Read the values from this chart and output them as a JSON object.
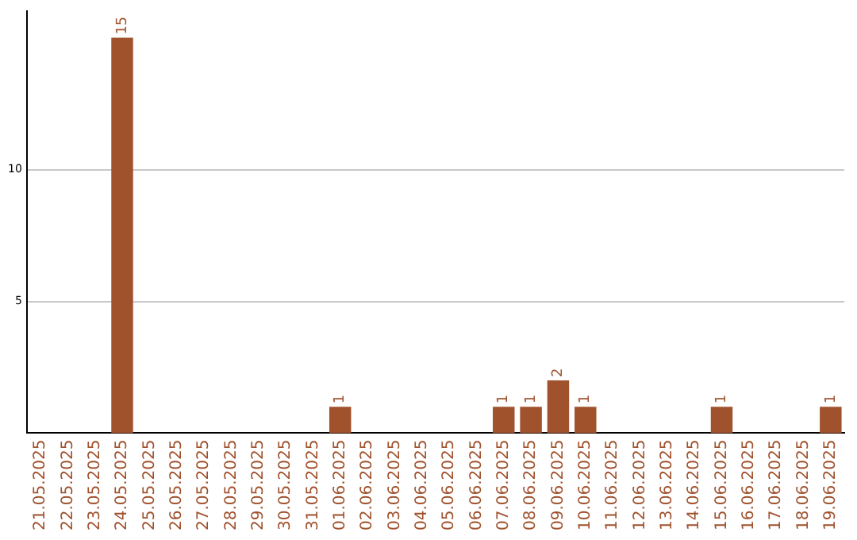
{
  "chart_data": {
    "type": "bar",
    "categories": [
      "21.05.2025",
      "22.05.2025",
      "23.05.2025",
      "24.05.2025",
      "25.05.2025",
      "26.05.2025",
      "27.05.2025",
      "28.05.2025",
      "29.05.2025",
      "30.05.2025",
      "31.05.2025",
      "01.06.2025",
      "02.06.2025",
      "03.06.2025",
      "04.06.2025",
      "05.06.2025",
      "06.06.2025",
      "07.06.2025",
      "08.06.2025",
      "09.06.2025",
      "10.06.2025",
      "11.06.2025",
      "12.06.2025",
      "13.06.2025",
      "14.06.2025",
      "15.06.2025",
      "16.06.2025",
      "17.06.2025",
      "18.06.2025",
      "19.06.2025"
    ],
    "values": [
      0,
      0,
      0,
      15,
      0,
      0,
      0,
      0,
      0,
      0,
      0,
      1,
      0,
      0,
      0,
      0,
      0,
      1,
      1,
      2,
      1,
      0,
      0,
      0,
      0,
      1,
      0,
      0,
      0,
      1
    ],
    "value_labels": [
      null,
      null,
      null,
      "15",
      null,
      null,
      null,
      null,
      null,
      null,
      null,
      "1",
      null,
      null,
      null,
      null,
      null,
      "1",
      "1",
      "2",
      "1",
      null,
      null,
      null,
      null,
      "1",
      null,
      null,
      null,
      "1"
    ],
    "color": "#a0522d",
    "ylim": [
      0,
      16
    ],
    "yticks": [
      5,
      10
    ],
    "grid": "y",
    "legend": false
  }
}
